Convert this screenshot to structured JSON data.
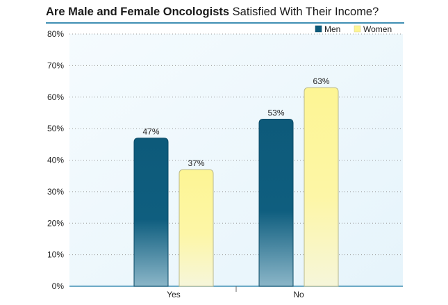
{
  "title_bold": "Are Male and Female Oncologists",
  "title_rest": "Satisfied With Their Income?",
  "chart_data": {
    "type": "bar",
    "title": "Are Male and Female Oncologists Satisfied With Their Income?",
    "categories": [
      "Yes",
      "No"
    ],
    "series": [
      {
        "name": "Men",
        "values": [
          47,
          53
        ],
        "labels": [
          "47%",
          "53%"
        ]
      },
      {
        "name": "Women",
        "values": [
          37,
          63
        ],
        "labels": [
          "37%",
          "63%"
        ]
      }
    ],
    "ylim": [
      0,
      80
    ],
    "yticks": [
      0,
      10,
      20,
      30,
      40,
      50,
      60,
      70,
      80
    ],
    "ytick_labels": [
      "0%",
      "10%",
      "20%",
      "30%",
      "40%",
      "50%",
      "60%",
      "70%",
      "80%"
    ],
    "grid": true,
    "legend_position": "top-right",
    "colors": {
      "Men": "#0d5a7a",
      "Women": "#fdf594"
    }
  }
}
